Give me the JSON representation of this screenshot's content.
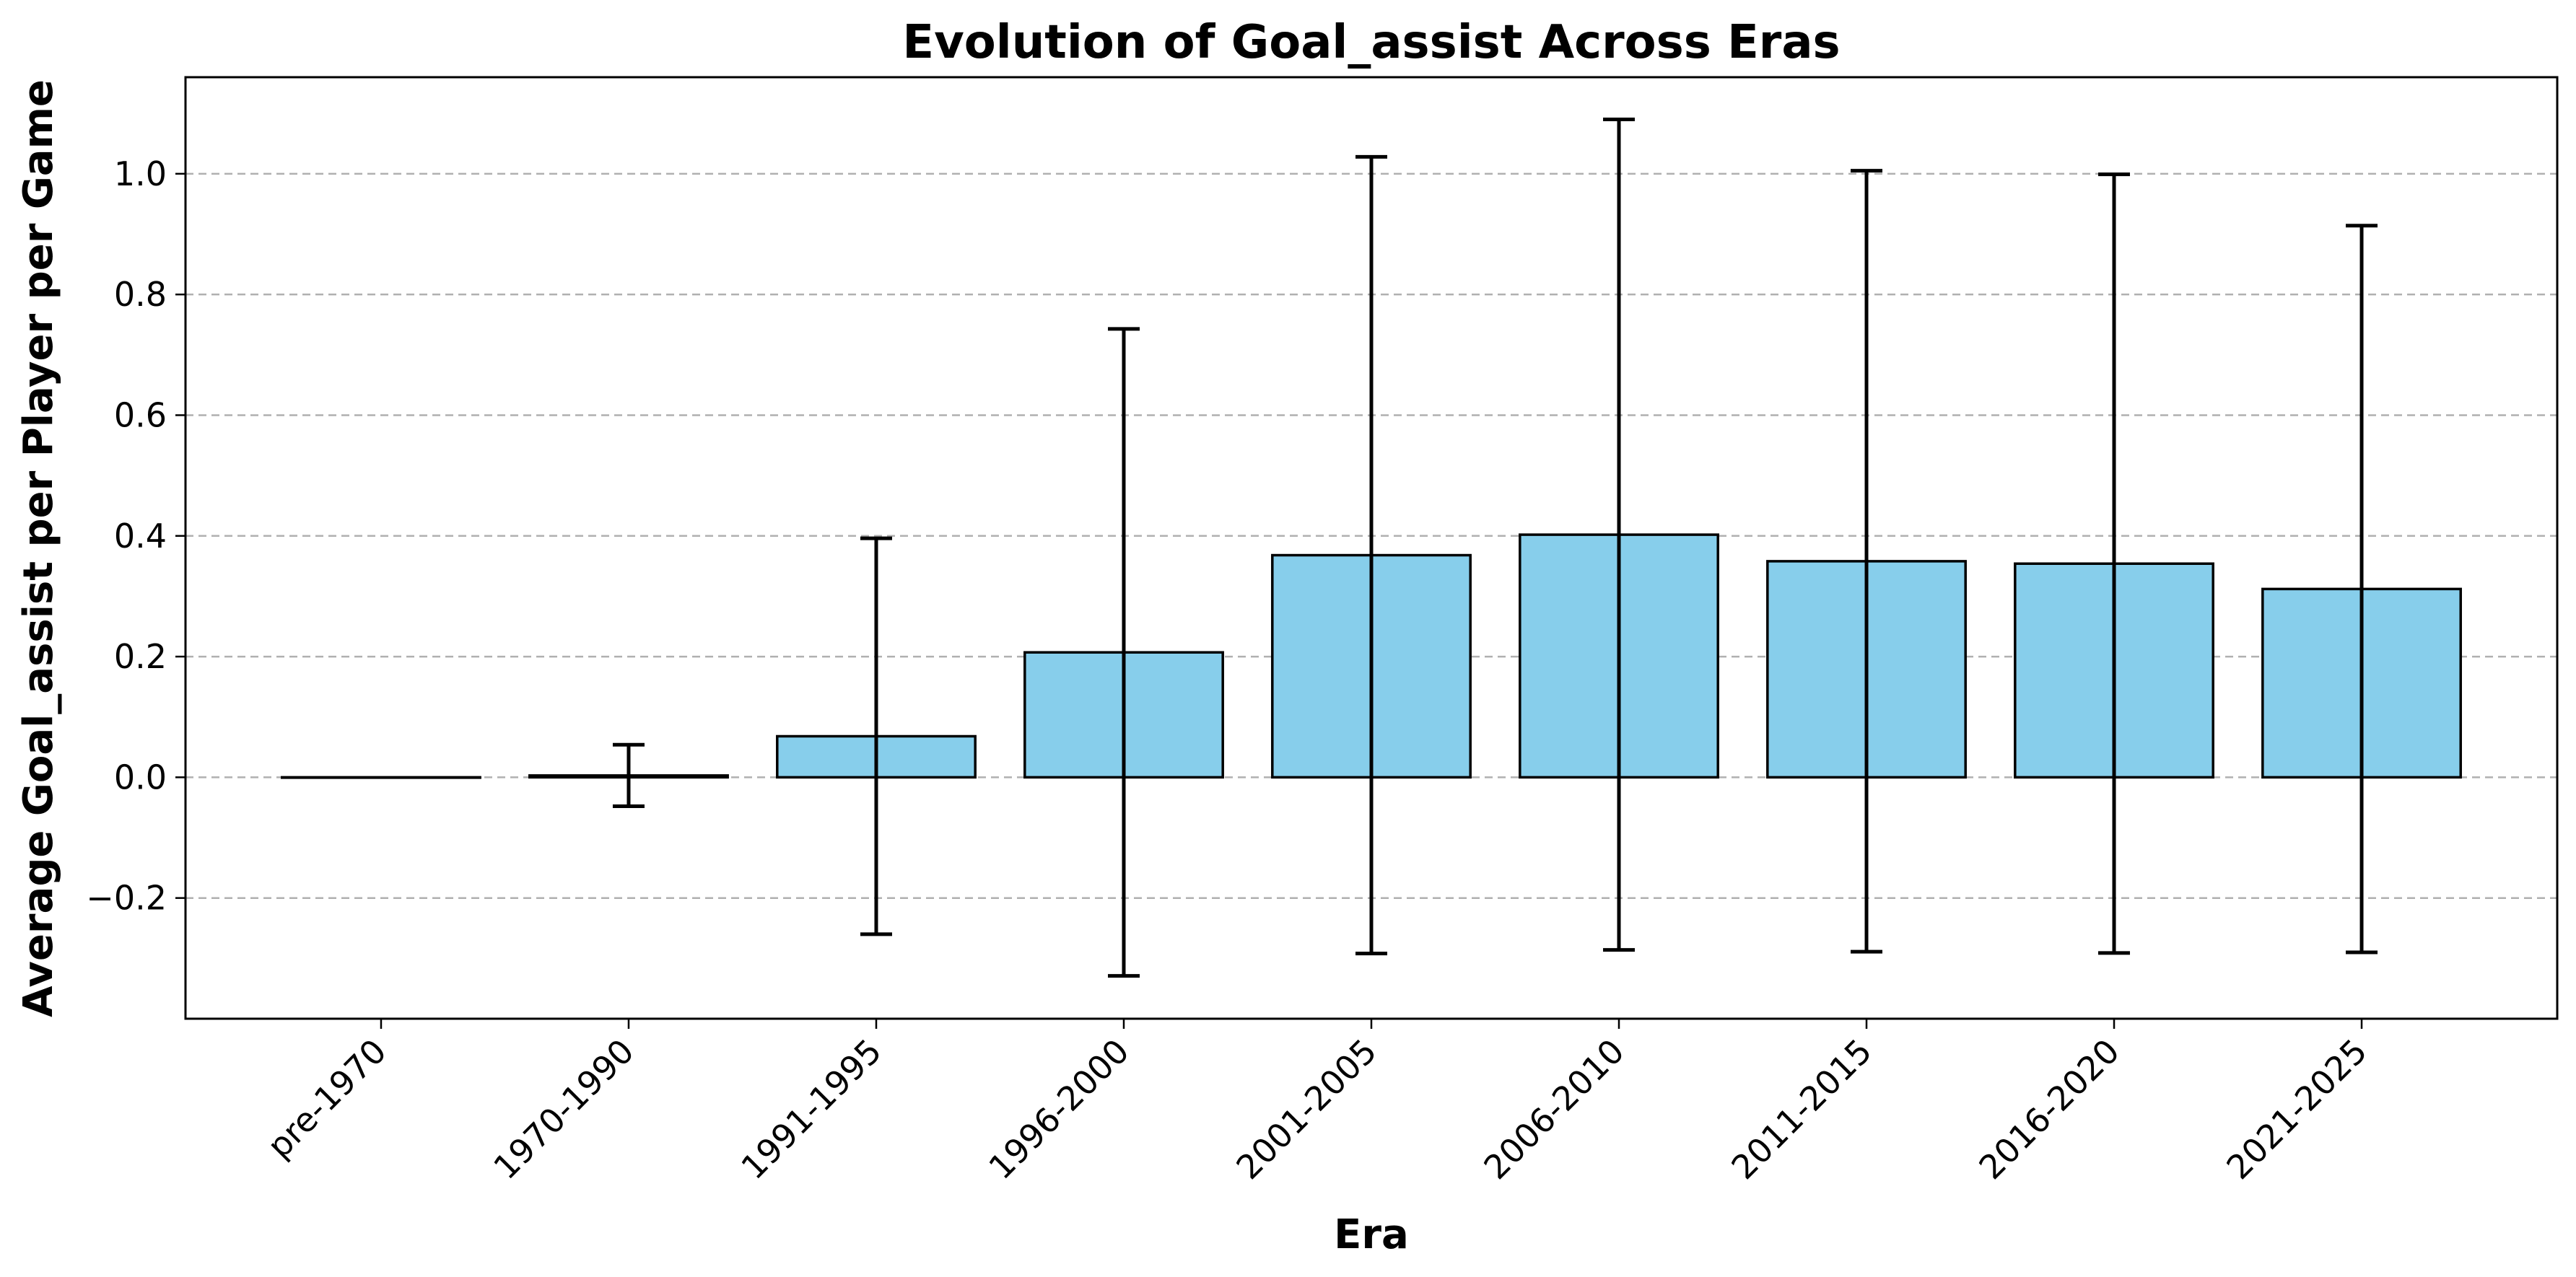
{
  "chart_data": {
    "type": "bar",
    "title": "Evolution of Goal_assist Across Eras",
    "xlabel": "Era",
    "ylabel": "Average Goal_assist per Player per Game",
    "categories": [
      "pre-1970",
      "1970-1990",
      "1991-1995",
      "1996-2000",
      "2001-2005",
      "2006-2010",
      "2011-2015",
      "2016-2020",
      "2021-2025"
    ],
    "values": [
      0.0,
      0.003,
      0.068,
      0.207,
      0.368,
      0.402,
      0.358,
      0.354,
      0.312
    ],
    "error": [
      0.0,
      0.051,
      0.328,
      0.536,
      0.66,
      0.688,
      0.647,
      0.645,
      0.602
    ],
    "ylim": [
      -0.4,
      1.16
    ],
    "yticks": [
      -0.2,
      0.0,
      0.2,
      0.4,
      0.6,
      0.8,
      1.0
    ],
    "ytick_labels": [
      "−0.2",
      "0.0",
      "0.2",
      "0.4",
      "0.6",
      "0.8",
      "1.0"
    ],
    "grid": "y-dashed",
    "bar_color": "#87ceeb",
    "edge_color": "#000000"
  }
}
